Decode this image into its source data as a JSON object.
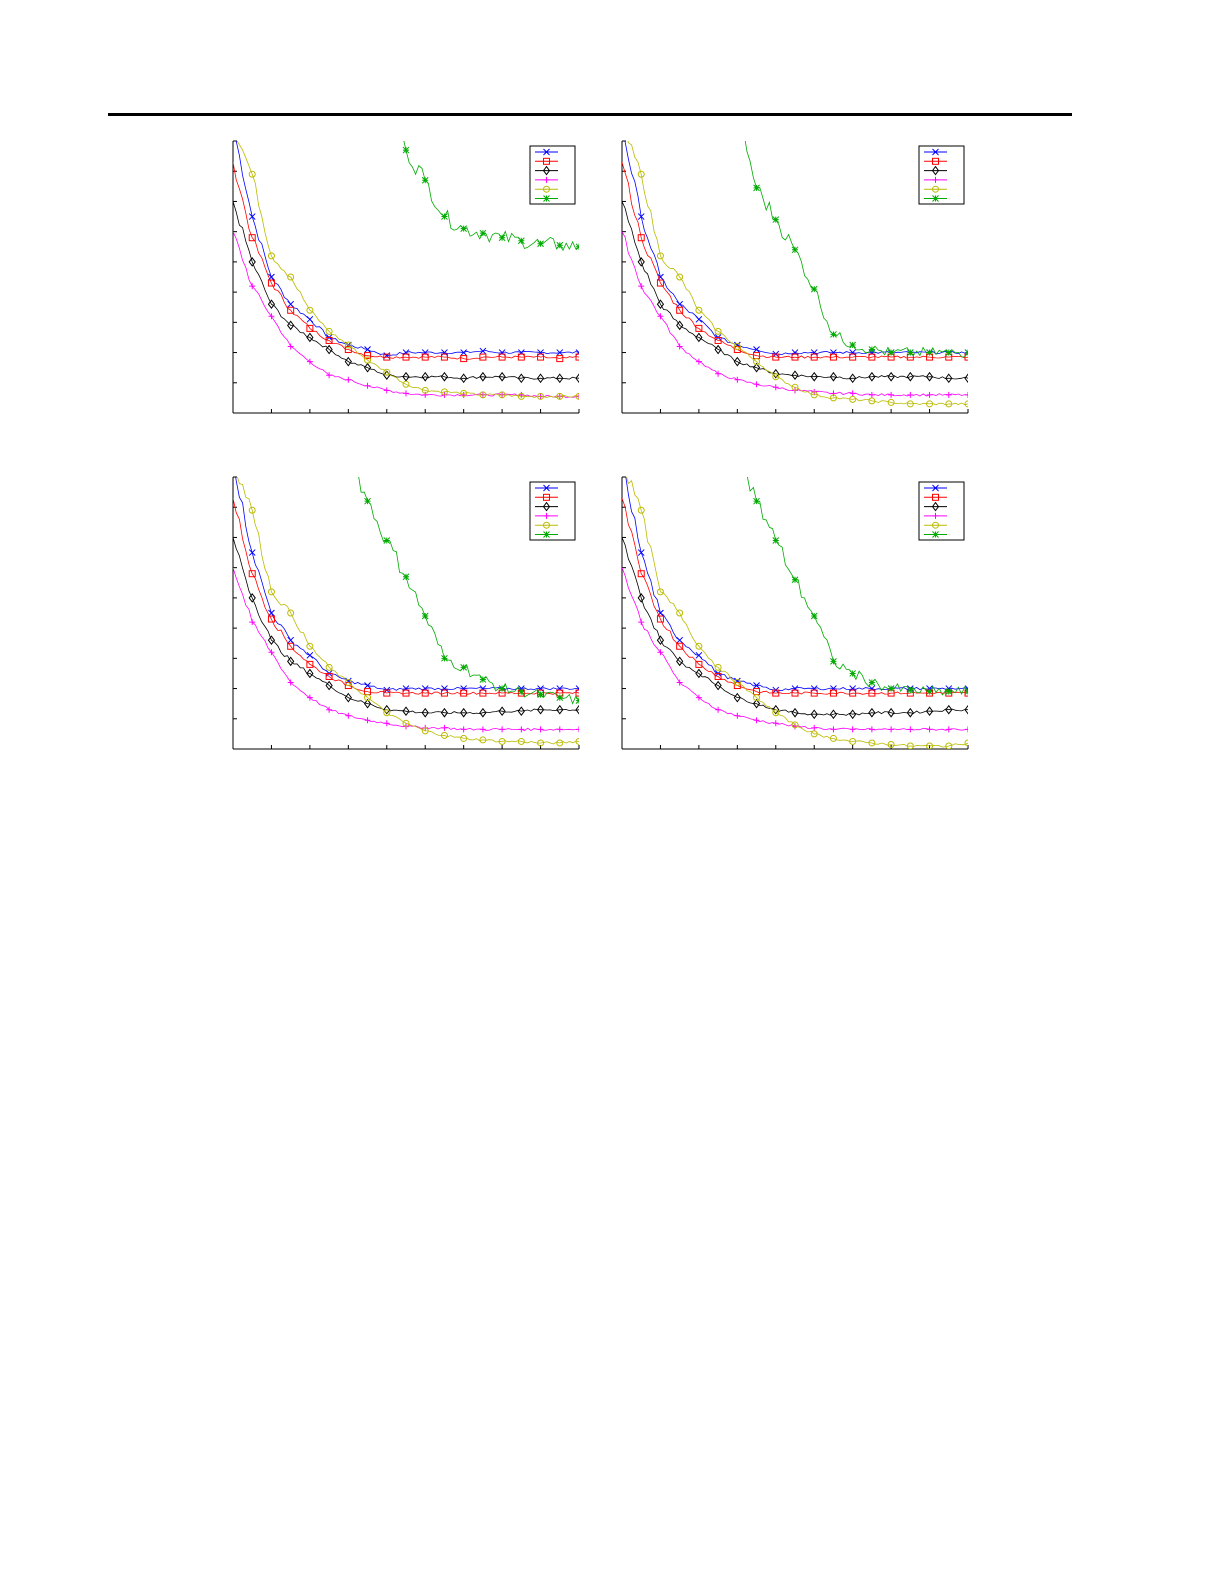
{
  "chart_data": [
    {
      "type": "line",
      "title": "",
      "xlabel": "",
      "ylabel": "",
      "xlim": [
        0,
        9
      ],
      "ylim": [
        0,
        9
      ],
      "grid": false,
      "legend_placement": "top-right",
      "x": [
        0,
        0.5,
        1,
        1.5,
        2,
        2.5,
        3,
        3.5,
        4,
        4.5,
        5,
        5.5,
        6,
        6.5,
        7,
        7.5,
        8,
        8.5,
        9
      ],
      "series": [
        {
          "color": "#0000ff",
          "marker": "x",
          "values": [
            9.5,
            6.5,
            4.5,
            3.6,
            3.1,
            2.5,
            2.25,
            2.1,
            1.9,
            2.0,
            2.0,
            2.0,
            2.0,
            2.05,
            2.0,
            2.0,
            2.0,
            2.0,
            2.0
          ]
        },
        {
          "color": "#ff0000",
          "marker": "square",
          "values": [
            8.3,
            5.8,
            4.3,
            3.4,
            2.8,
            2.4,
            2.1,
            1.9,
            1.85,
            1.85,
            1.85,
            1.85,
            1.8,
            1.85,
            1.85,
            1.85,
            1.85,
            1.8,
            1.85
          ]
        },
        {
          "color": "#000000",
          "marker": "diamond",
          "values": [
            7.0,
            5.0,
            3.6,
            2.9,
            2.5,
            2.1,
            1.7,
            1.5,
            1.25,
            1.2,
            1.2,
            1.2,
            1.15,
            1.2,
            1.2,
            1.15,
            1.15,
            1.15,
            1.15
          ]
        },
        {
          "color": "#ff00ff",
          "marker": "plus",
          "values": [
            6.0,
            4.2,
            3.2,
            2.2,
            1.7,
            1.25,
            1.1,
            0.9,
            0.75,
            0.65,
            0.6,
            0.6,
            0.6,
            0.6,
            0.6,
            0.6,
            0.55,
            0.55,
            0.55
          ]
        },
        {
          "color": "#bbbb00",
          "marker": "circle",
          "values": [
            9.5,
            7.9,
            5.2,
            4.5,
            3.4,
            2.7,
            2.25,
            1.75,
            1.35,
            0.95,
            0.75,
            0.7,
            0.65,
            0.6,
            0.6,
            0.55,
            0.55,
            0.55,
            0.55
          ]
        },
        {
          "color": "#00aa00",
          "marker": "star",
          "values": [
            null,
            null,
            null,
            null,
            null,
            null,
            null,
            null,
            10,
            8.7,
            7.7,
            6.5,
            6.1,
            5.95,
            5.8,
            5.7,
            5.6,
            5.55,
            5.5
          ]
        }
      ]
    },
    {
      "type": "line",
      "title": "",
      "xlabel": "",
      "ylabel": "",
      "xlim": [
        0,
        9
      ],
      "ylim": [
        0,
        9
      ],
      "grid": false,
      "legend_placement": "top-right",
      "x": [
        0,
        0.5,
        1,
        1.5,
        2,
        2.5,
        3,
        3.5,
        4,
        4.5,
        5,
        5.5,
        6,
        6.5,
        7,
        7.5,
        8,
        8.5,
        9
      ],
      "series": [
        {
          "color": "#0000ff",
          "marker": "x",
          "values": [
            9.5,
            6.5,
            4.5,
            3.6,
            3.1,
            2.5,
            2.25,
            2.1,
            1.95,
            2.0,
            2.0,
            2.0,
            2.0,
            2.0,
            2.0,
            2.0,
            2.0,
            2.0,
            2.0
          ]
        },
        {
          "color": "#ff0000",
          "marker": "square",
          "values": [
            8.3,
            5.8,
            4.3,
            3.4,
            2.8,
            2.4,
            2.1,
            1.9,
            1.85,
            1.85,
            1.85,
            1.85,
            1.85,
            1.85,
            1.85,
            1.85,
            1.85,
            1.85,
            1.85
          ]
        },
        {
          "color": "#000000",
          "marker": "diamond",
          "values": [
            7.0,
            5.0,
            3.6,
            2.9,
            2.5,
            2.1,
            1.7,
            1.5,
            1.3,
            1.25,
            1.2,
            1.2,
            1.15,
            1.2,
            1.2,
            1.2,
            1.2,
            1.15,
            1.15
          ]
        },
        {
          "color": "#ff00ff",
          "marker": "plus",
          "values": [
            6.0,
            4.2,
            3.2,
            2.2,
            1.7,
            1.3,
            1.1,
            0.95,
            0.85,
            0.75,
            0.7,
            0.65,
            0.65,
            0.6,
            0.6,
            0.6,
            0.6,
            0.6,
            0.6
          ]
        },
        {
          "color": "#bbbb00",
          "marker": "circle",
          "values": [
            9.5,
            7.9,
            5.2,
            4.5,
            3.4,
            2.7,
            2.2,
            1.7,
            1.2,
            0.85,
            0.6,
            0.5,
            0.45,
            0.4,
            0.35,
            0.3,
            0.3,
            0.3,
            0.3
          ]
        },
        {
          "color": "#00aa00",
          "marker": "star",
          "values": [
            null,
            null,
            null,
            null,
            null,
            null,
            10,
            7.45,
            6.4,
            5.4,
            4.1,
            2.6,
            2.25,
            2.1,
            2.0,
            2.0,
            2.0,
            2.0,
            2.0
          ]
        }
      ]
    },
    {
      "type": "line",
      "title": "",
      "xlabel": "",
      "ylabel": "",
      "xlim": [
        0,
        9
      ],
      "ylim": [
        0,
        9
      ],
      "grid": false,
      "legend_placement": "top-right",
      "x": [
        0,
        0.5,
        1,
        1.5,
        2,
        2.5,
        3,
        3.5,
        4,
        4.5,
        5,
        5.5,
        6,
        6.5,
        7,
        7.5,
        8,
        8.5,
        9
      ],
      "series": [
        {
          "color": "#0000ff",
          "marker": "x",
          "values": [
            9.5,
            6.5,
            4.5,
            3.6,
            3.1,
            2.5,
            2.25,
            2.1,
            1.95,
            2.0,
            2.0,
            2.0,
            2.0,
            2.0,
            2.0,
            2.0,
            2.0,
            2.0,
            2.0
          ]
        },
        {
          "color": "#ff0000",
          "marker": "square",
          "values": [
            8.3,
            5.8,
            4.3,
            3.4,
            2.8,
            2.4,
            2.1,
            1.9,
            1.85,
            1.85,
            1.85,
            1.85,
            1.85,
            1.85,
            1.85,
            1.85,
            1.85,
            1.85,
            1.85
          ]
        },
        {
          "color": "#000000",
          "marker": "diamond",
          "values": [
            7.0,
            5.0,
            3.6,
            2.9,
            2.5,
            2.1,
            1.7,
            1.5,
            1.3,
            1.25,
            1.2,
            1.2,
            1.2,
            1.2,
            1.25,
            1.25,
            1.3,
            1.3,
            1.3
          ]
        },
        {
          "color": "#ff00ff",
          "marker": "plus",
          "values": [
            6.0,
            4.2,
            3.2,
            2.2,
            1.7,
            1.3,
            1.1,
            0.95,
            0.85,
            0.75,
            0.7,
            0.7,
            0.65,
            0.65,
            0.65,
            0.65,
            0.65,
            0.65,
            0.65
          ]
        },
        {
          "color": "#bbbb00",
          "marker": "circle",
          "values": [
            9.5,
            7.9,
            5.2,
            4.5,
            3.4,
            2.7,
            2.2,
            1.7,
            1.2,
            0.85,
            0.6,
            0.45,
            0.35,
            0.3,
            0.25,
            0.25,
            0.2,
            0.2,
            0.25
          ]
        },
        {
          "color": "#00aa00",
          "marker": "star",
          "values": [
            null,
            null,
            null,
            null,
            null,
            null,
            10,
            8.2,
            6.9,
            5.7,
            4.4,
            3.0,
            2.7,
            2.3,
            2.0,
            1.9,
            1.8,
            1.7,
            1.6
          ]
        }
      ]
    },
    {
      "type": "line",
      "title": "",
      "xlabel": "",
      "ylabel": "",
      "xlim": [
        0,
        9
      ],
      "ylim": [
        0,
        9
      ],
      "grid": false,
      "legend_placement": "top-right",
      "x": [
        0,
        0.5,
        1,
        1.5,
        2,
        2.5,
        3,
        3.5,
        4,
        4.5,
        5,
        5.5,
        6,
        6.5,
        7,
        7.5,
        8,
        8.5,
        9
      ],
      "series": [
        {
          "color": "#0000ff",
          "marker": "x",
          "values": [
            9.5,
            6.5,
            4.5,
            3.6,
            3.1,
            2.5,
            2.25,
            2.1,
            1.95,
            2.0,
            2.0,
            2.0,
            2.0,
            2.0,
            2.0,
            2.0,
            2.0,
            2.0,
            2.0
          ]
        },
        {
          "color": "#ff0000",
          "marker": "square",
          "values": [
            8.3,
            5.8,
            4.3,
            3.4,
            2.8,
            2.4,
            2.1,
            1.9,
            1.85,
            1.85,
            1.85,
            1.85,
            1.85,
            1.85,
            1.85,
            1.85,
            1.85,
            1.85,
            1.85
          ]
        },
        {
          "color": "#000000",
          "marker": "diamond",
          "values": [
            7.0,
            5.0,
            3.6,
            2.9,
            2.5,
            2.1,
            1.7,
            1.5,
            1.3,
            1.2,
            1.15,
            1.15,
            1.15,
            1.2,
            1.2,
            1.2,
            1.25,
            1.3,
            1.3
          ]
        },
        {
          "color": "#ff00ff",
          "marker": "plus",
          "values": [
            6.0,
            4.2,
            3.2,
            2.2,
            1.7,
            1.3,
            1.1,
            0.95,
            0.85,
            0.75,
            0.7,
            0.65,
            0.65,
            0.65,
            0.65,
            0.65,
            0.65,
            0.65,
            0.65
          ]
        },
        {
          "color": "#bbbb00",
          "marker": "circle",
          "values": [
            9.5,
            7.9,
            5.2,
            4.5,
            3.4,
            2.7,
            2.2,
            1.7,
            1.2,
            0.8,
            0.5,
            0.35,
            0.25,
            0.2,
            0.15,
            0.1,
            0.1,
            0.1,
            0.2
          ]
        },
        {
          "color": "#00aa00",
          "marker": "star",
          "values": [
            null,
            null,
            null,
            null,
            null,
            null,
            10,
            8.2,
            6.9,
            5.6,
            4.4,
            2.9,
            2.5,
            2.2,
            2.0,
            1.95,
            1.9,
            1.9,
            1.9
          ]
        }
      ]
    }
  ]
}
